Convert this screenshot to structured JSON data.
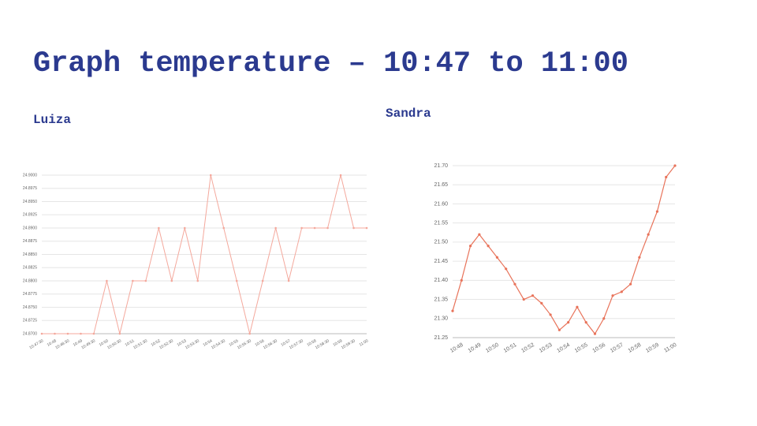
{
  "title": "Graph temperature – 10:47 to 11:00",
  "chart_data": [
    {
      "type": "line",
      "title": "Luiza",
      "categories": [
        "10:47:30",
        "10:48",
        "10:48:30",
        "10:49",
        "10:49:30",
        "10:50",
        "10:50:30",
        "10:51",
        "10:51:30",
        "10:52",
        "10:52:30",
        "10:53",
        "10:53:30",
        "10:54",
        "10:54:30",
        "10:55",
        "10:55:30",
        "10:56",
        "10:56:30",
        "10:57",
        "10:57:30",
        "10:58",
        "10:58:30",
        "10:59",
        "10:59:30",
        "11:00"
      ],
      "values": [
        24.87,
        24.87,
        24.87,
        24.87,
        24.87,
        24.88,
        24.87,
        24.88,
        24.88,
        24.89,
        24.88,
        24.89,
        24.88,
        24.9,
        24.89,
        24.88,
        24.87,
        24.88,
        24.89,
        24.88,
        24.89,
        24.89,
        24.89,
        24.9,
        24.89,
        24.89
      ],
      "color": "#f4a89c",
      "ylim": [
        24.87,
        24.9
      ],
      "yticks": [
        {
          "value": 24.87,
          "label": "24.8700"
        },
        {
          "value": 24.8725,
          "label": "24.8725"
        },
        {
          "value": 24.875,
          "label": "24.8750"
        },
        {
          "value": 24.8775,
          "label": "24.8775"
        },
        {
          "value": 24.88,
          "label": "24.8800"
        },
        {
          "value": 24.8825,
          "label": "24.8825"
        },
        {
          "value": 24.885,
          "label": "24.8850"
        },
        {
          "value": 24.8875,
          "label": "24.8875"
        },
        {
          "value": 24.89,
          "label": "24.8900"
        },
        {
          "value": 24.8925,
          "label": "24.8925"
        },
        {
          "value": 24.895,
          "label": "24.8950"
        },
        {
          "value": 24.8975,
          "label": "24.8975"
        },
        {
          "value": 24.9,
          "label": "24.9000"
        }
      ],
      "grid": true
    },
    {
      "type": "line",
      "title": "Sandra",
      "categories": [
        null,
        "10:48",
        null,
        "10:49",
        null,
        "10:50",
        null,
        "10:51",
        null,
        "10:52",
        null,
        "10:53",
        null,
        "10:54",
        null,
        "10:55",
        null,
        "10:56",
        null,
        "10:57",
        null,
        "10:58",
        null,
        "10:59",
        null,
        "11:00"
      ],
      "values": [
        21.32,
        21.4,
        21.49,
        21.52,
        21.49,
        21.46,
        21.43,
        21.39,
        21.35,
        21.36,
        21.34,
        21.31,
        21.27,
        21.29,
        21.33,
        21.29,
        21.26,
        21.3,
        21.36,
        21.37,
        21.39,
        21.46,
        21.52,
        21.58,
        21.67,
        21.7
      ],
      "color": "#e8735a",
      "ylim": [
        21.25,
        21.7
      ],
      "yticks": [
        21.25,
        {
          "value": 21.3,
          "label": "21.30"
        },
        21.35,
        {
          "value": 21.4,
          "label": "21.40"
        },
        21.45,
        {
          "value": 21.5,
          "label": "21.50"
        },
        21.55,
        {
          "value": 21.6,
          "label": "21.60"
        },
        21.65,
        {
          "value": 21.7,
          "label": "21.70"
        }
      ],
      "grid": true
    }
  ]
}
